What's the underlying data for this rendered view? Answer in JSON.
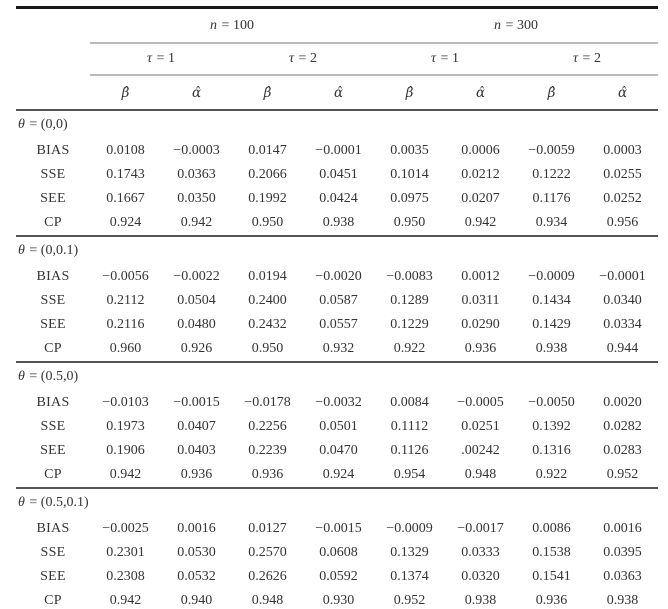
{
  "colors": {
    "background": "#ffffff",
    "text": "#343434",
    "rule_heavy": "#1a1a1a",
    "rule_medium": "#555555",
    "rule_light": "#b9b9b9"
  },
  "header": {
    "groups": [
      {
        "sym": "n",
        "rest": " = 100"
      },
      {
        "sym": "n",
        "rest": " = 300"
      }
    ],
    "taus": [
      {
        "sym": "τ",
        "rest": " = 1"
      },
      {
        "sym": "τ",
        "rest": " = 2"
      },
      {
        "sym": "τ",
        "rest": " = 1"
      },
      {
        "sym": "τ",
        "rest": " = 2"
      }
    ],
    "params": [
      "β̂",
      "α̂",
      "β̂",
      "α̂",
      "β̂",
      "α̂",
      "β̂",
      "α̂"
    ]
  },
  "blocks": [
    {
      "sym": "θ",
      "rest": " = (0,0)",
      "rows": [
        {
          "label": "BIAS",
          "values": [
            "0.0108",
            "−0.0003",
            "0.0147",
            "−0.0001",
            "0.0035",
            "0.0006",
            "−0.0059",
            "0.0003"
          ]
        },
        {
          "label": "SSE",
          "values": [
            "0.1743",
            "0.0363",
            "0.2066",
            "0.0451",
            "0.1014",
            "0.0212",
            "0.1222",
            "0.0255"
          ]
        },
        {
          "label": "SEE",
          "values": [
            "0.1667",
            "0.0350",
            "0.1992",
            "0.0424",
            "0.0975",
            "0.0207",
            "0.1176",
            "0.0252"
          ]
        },
        {
          "label": "CP",
          "values": [
            "0.924",
            "0.942",
            "0.950",
            "0.938",
            "0.950",
            "0.942",
            "0.934",
            "0.956"
          ]
        }
      ]
    },
    {
      "sym": "θ",
      "rest": " = (0,0.1)",
      "rows": [
        {
          "label": "BIAS",
          "values": [
            "−0.0056",
            "−0.0022",
            "0.0194",
            "−0.0020",
            "−0.0083",
            "0.0012",
            "−0.0009",
            "−0.0001"
          ]
        },
        {
          "label": "SSE",
          "values": [
            "0.2112",
            "0.0504",
            "0.2400",
            "0.0587",
            "0.1289",
            "0.0311",
            "0.1434",
            "0.0340"
          ]
        },
        {
          "label": "SEE",
          "values": [
            "0.2116",
            "0.0480",
            "0.2432",
            "0.0557",
            "0.1229",
            "0.0290",
            "0.1429",
            "0.0334"
          ]
        },
        {
          "label": "CP",
          "values": [
            "0.960",
            "0.926",
            "0.950",
            "0.932",
            "0.922",
            "0.936",
            "0.938",
            "0.944"
          ]
        }
      ]
    },
    {
      "sym": "θ",
      "rest": " = (0.5,0)",
      "rows": [
        {
          "label": "BIAS",
          "values": [
            "−0.0103",
            "−0.0015",
            "−0.0178",
            "−0.0032",
            "0.0084",
            "−0.0005",
            "−0.0050",
            "0.0020"
          ]
        },
        {
          "label": "SSE",
          "values": [
            "0.1973",
            "0.0407",
            "0.2256",
            "0.0501",
            "0.1112",
            "0.0251",
            "0.1392",
            "0.0282"
          ]
        },
        {
          "label": "SEE",
          "values": [
            "0.1906",
            "0.0403",
            "0.2239",
            "0.0470",
            "0.1126",
            ".00242",
            "0.1316",
            "0.0283"
          ]
        },
        {
          "label": "CP",
          "values": [
            "0.942",
            "0.936",
            "0.936",
            "0.924",
            "0.954",
            "0.948",
            "0.922",
            "0.952"
          ]
        }
      ]
    },
    {
      "sym": "θ",
      "rest": " = (0.5,0.1)",
      "rows": [
        {
          "label": "BIAS",
          "values": [
            "−0.0025",
            "0.0016",
            "0.0127",
            "−0.0015",
            "−0.0009",
            "−0.0017",
            "0.0086",
            "0.0016"
          ]
        },
        {
          "label": "SSE",
          "values": [
            "0.2301",
            "0.0530",
            "0.2570",
            "0.0608",
            "0.1329",
            "0.0333",
            "0.1538",
            "0.0395"
          ]
        },
        {
          "label": "SEE",
          "values": [
            "0.2308",
            "0.0532",
            "0.2626",
            "0.0592",
            "0.1374",
            "0.0320",
            "0.1541",
            "0.0363"
          ]
        },
        {
          "label": "CP",
          "values": [
            "0.942",
            "0.940",
            "0.948",
            "0.930",
            "0.952",
            "0.938",
            "0.936",
            "0.938"
          ]
        }
      ]
    }
  ]
}
